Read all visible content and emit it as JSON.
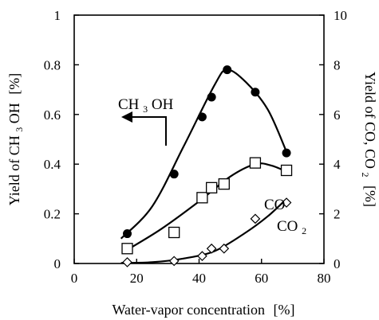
{
  "chart_data": {
    "type": "scatter",
    "x": {
      "label": "Water-vapor concentration",
      "unit": "[%]",
      "lim": [
        0,
        80
      ],
      "ticks": [
        0,
        20,
        40,
        60,
        80
      ]
    },
    "y_left": {
      "label_main": "Yield of CH",
      "label_sub": "3",
      "label_end": "OH",
      "unit": "[%]",
      "lim": [
        0,
        1
      ],
      "ticks": [
        0,
        0.2,
        0.4,
        0.6,
        0.8,
        1
      ],
      "tick_labels": [
        "0",
        "0.2",
        "0.4",
        "0.6",
        "0.8",
        "1"
      ]
    },
    "y_right": {
      "label_main": "Yield of CO, CO",
      "label_sub": "2",
      "unit": "[%]",
      "lim": [
        0,
        10
      ],
      "ticks": [
        0,
        2,
        4,
        6,
        8,
        10
      ],
      "tick_labels": [
        "0",
        "2",
        "4",
        "6",
        "8",
        "10"
      ]
    },
    "series": [
      {
        "name": "CH3OH",
        "axis": "left",
        "marker": "filled-circle",
        "points": [
          [
            17,
            0.12
          ],
          [
            32,
            0.36
          ],
          [
            41,
            0.59
          ],
          [
            44,
            0.67
          ],
          [
            49,
            0.78
          ],
          [
            58,
            0.69
          ],
          [
            68,
            0.445
          ]
        ]
      },
      {
        "name": "CO",
        "axis": "right",
        "marker": "open-square",
        "points": [
          [
            17,
            0.6
          ],
          [
            32,
            1.25
          ],
          [
            41,
            2.65
          ],
          [
            44,
            3.05
          ],
          [
            48,
            3.2
          ],
          [
            58,
            4.05
          ],
          [
            68,
            3.75
          ]
        ]
      },
      {
        "name": "CO2",
        "axis": "right",
        "marker": "open-diamond",
        "points": [
          [
            17,
            0.05
          ],
          [
            32,
            0.1
          ],
          [
            41,
            0.3
          ],
          [
            44,
            0.6
          ],
          [
            48,
            0.6
          ],
          [
            58,
            1.8
          ],
          [
            68,
            2.45
          ]
        ]
      }
    ],
    "fit_curves": [
      {
        "series": "CH3OH",
        "axis": "left",
        "points": [
          [
            15,
            0.1
          ],
          [
            25,
            0.23
          ],
          [
            35,
            0.47
          ],
          [
            45,
            0.72
          ],
          [
            49,
            0.78
          ],
          [
            55,
            0.73
          ],
          [
            62,
            0.62
          ],
          [
            68,
            0.45
          ]
        ]
      },
      {
        "series": "CO",
        "axis": "right",
        "points": [
          [
            17,
            0.55
          ],
          [
            28,
            1.4
          ],
          [
            40,
            2.5
          ],
          [
            50,
            3.5
          ],
          [
            58,
            4.0
          ],
          [
            63,
            3.95
          ],
          [
            68,
            3.7
          ]
        ]
      },
      {
        "series": "CO2",
        "axis": "right",
        "points": [
          [
            15,
            0.02
          ],
          [
            25,
            0.05
          ],
          [
            35,
            0.2
          ],
          [
            45,
            0.5
          ],
          [
            55,
            1.25
          ],
          [
            62,
            1.9
          ],
          [
            68,
            2.6
          ]
        ]
      }
    ],
    "annotations": {
      "ch3oh": {
        "main": "CH",
        "sub": "3",
        "end": "OH"
      },
      "co": {
        "text": "CO"
      },
      "co2": {
        "main": "CO",
        "sub": "2"
      }
    },
    "grid": false
  }
}
